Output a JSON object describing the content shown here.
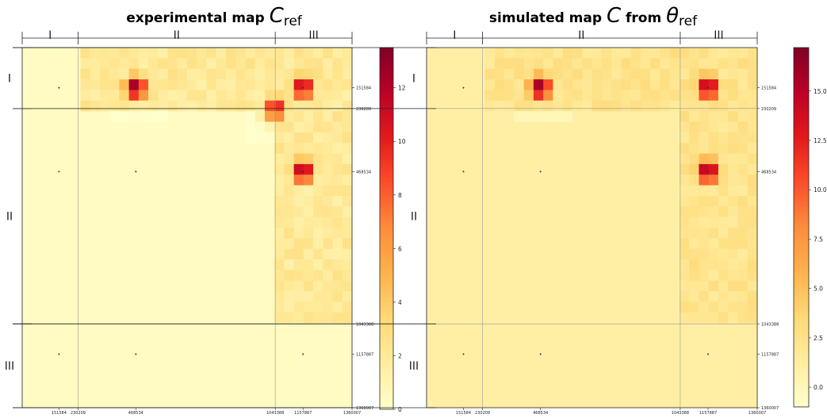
{
  "chart_data": [
    {
      "type": "heatmap",
      "title_main": "experimental map ",
      "title_symbol": "C",
      "title_subscript": "ref",
      "regions": [
        "I",
        "II",
        "III"
      ],
      "positions": [
        151584,
        230209,
        468534,
        1043388,
        1157887,
        1360007
      ],
      "boundaries": [
        0,
        230209,
        1043388,
        1360007
      ],
      "tick_labels": [
        "151584",
        "230209",
        "468534",
        "1043388",
        "1157887",
        "1360007"
      ],
      "colorbar": {
        "colormap": "YlOrRd",
        "range": [
          0,
          13.5
        ],
        "ticks": [
          0,
          2,
          4,
          6,
          8,
          10,
          12
        ],
        "tick_labels": [
          "0",
          "2",
          "4",
          "6",
          "8",
          "10",
          "12"
        ]
      },
      "background": 0.4,
      "blocks": [
        {
          "rows": [
            0,
            230209
          ],
          "cols": [
            230209,
            1360007
          ],
          "level": 2.0
        },
        {
          "rows": [
            230209,
            1043388
          ],
          "cols": [
            1043388,
            1360007
          ],
          "level": 2.0
        }
      ],
      "peaks": [
        {
          "row": 151584,
          "col": 468534,
          "value": 13.5
        },
        {
          "row": 151584,
          "col": 1157887,
          "value": 12.5
        },
        {
          "row": 468534,
          "col": 1157887,
          "value": 13.0
        },
        {
          "row": 230209,
          "col": 1043388,
          "value": 11.0
        }
      ]
    },
    {
      "type": "heatmap",
      "title_main": "simulated map ",
      "title_symbol": "C",
      "title_mid": " from ",
      "title_symbol2": "θ",
      "title_subscript": "ref",
      "regions": [
        "I",
        "II",
        "III"
      ],
      "positions": [
        151584,
        230209,
        468534,
        1043388,
        1157887,
        1360007
      ],
      "boundaries": [
        0,
        230209,
        1043388,
        1360007
      ],
      "tick_labels": [
        "151584",
        "230209",
        "468534",
        "1043388",
        "1157887",
        "1360007"
      ],
      "colorbar": {
        "colormap": "YlOrRd",
        "range": [
          -1,
          17.2
        ],
        "ticks": [
          0,
          2.5,
          5,
          7.5,
          10,
          12.5,
          15
        ],
        "tick_labels": [
          "0.0",
          "2.5",
          "5.0",
          "7.5",
          "10.0",
          "12.5",
          "15.0"
        ]
      },
      "background": 1.0,
      "blocks": [
        {
          "rows": [
            0,
            230209
          ],
          "cols": [
            230209,
            1360007
          ],
          "level": 2.3
        },
        {
          "rows": [
            230209,
            1043388
          ],
          "cols": [
            1043388,
            1360007
          ],
          "level": 2.3
        }
      ],
      "peaks": [
        {
          "row": 151584,
          "col": 468534,
          "value": 17.0
        },
        {
          "row": 151584,
          "col": 1157887,
          "value": 16.5
        },
        {
          "row": 468534,
          "col": 1157887,
          "value": 16.8
        }
      ]
    }
  ]
}
